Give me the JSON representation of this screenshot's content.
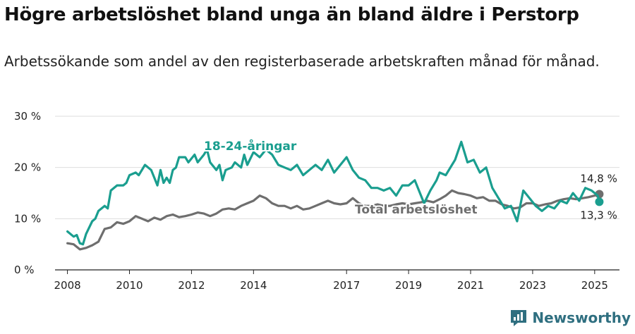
{
  "title": "Högre arbetslöshet bland unga än bland äldre i Perstorp",
  "subtitle": "Arbetssökande som andel av den registerbaserade arbetskraften månad för månad.",
  "logo": {
    "text": "Newsworthy",
    "icon": "bar-chart-icon"
  },
  "chart_data": {
    "type": "line",
    "title": "Högre arbetslöshet bland unga än bland äldre i Perstorp",
    "subtitle": "Arbetssökande som andel av den registerbaserade arbetskraften månad för månad.",
    "ylim": [
      0,
      30
    ],
    "xlim": [
      2007.6,
      2025.8
    ],
    "y_ticks": [
      0,
      10,
      20,
      30
    ],
    "y_tick_labels": [
      "0 %",
      "10 %",
      "20 %",
      "30 %"
    ],
    "x_ticks": [
      2008,
      2010,
      2012,
      2014,
      2017,
      2019,
      2021,
      2023,
      2025
    ],
    "x_tick_labels": [
      "2008",
      "2010",
      "2012",
      "2014",
      "2017",
      "2019",
      "2021",
      "2023",
      "2025"
    ],
    "grid": true,
    "series": [
      {
        "name": "18-24-åringar",
        "color": "#1a9e8f",
        "end_label": "13,3 %",
        "points": [
          [
            2008.0,
            7.5
          ],
          [
            2008.2,
            6.5
          ],
          [
            2008.3,
            6.8
          ],
          [
            2008.4,
            5.2
          ],
          [
            2008.5,
            5.0
          ],
          [
            2008.6,
            7.0
          ],
          [
            2008.8,
            9.5
          ],
          [
            2008.9,
            10.0
          ],
          [
            2009.0,
            11.5
          ],
          [
            2009.2,
            12.5
          ],
          [
            2009.3,
            12.0
          ],
          [
            2009.4,
            15.5
          ],
          [
            2009.6,
            16.5
          ],
          [
            2009.8,
            16.5
          ],
          [
            2009.9,
            17.0
          ],
          [
            2010.0,
            18.5
          ],
          [
            2010.2,
            19.0
          ],
          [
            2010.3,
            18.5
          ],
          [
            2010.5,
            20.5
          ],
          [
            2010.7,
            19.5
          ],
          [
            2010.8,
            18.0
          ],
          [
            2010.9,
            16.5
          ],
          [
            2011.0,
            19.5
          ],
          [
            2011.1,
            17.0
          ],
          [
            2011.2,
            18.0
          ],
          [
            2011.3,
            17.0
          ],
          [
            2011.4,
            19.5
          ],
          [
            2011.5,
            20.0
          ],
          [
            2011.6,
            22.0
          ],
          [
            2011.8,
            22.0
          ],
          [
            2011.9,
            21.0
          ],
          [
            2012.1,
            22.5
          ],
          [
            2012.2,
            21.0
          ],
          [
            2012.4,
            22.5
          ],
          [
            2012.5,
            23.5
          ],
          [
            2012.6,
            21.0
          ],
          [
            2012.8,
            19.5
          ],
          [
            2012.9,
            20.5
          ],
          [
            2013.0,
            17.5
          ],
          [
            2013.1,
            19.5
          ],
          [
            2013.3,
            20.0
          ],
          [
            2013.4,
            21.0
          ],
          [
            2013.6,
            20.0
          ],
          [
            2013.7,
            22.5
          ],
          [
            2013.8,
            20.5
          ],
          [
            2014.0,
            23.0
          ],
          [
            2014.2,
            22.0
          ],
          [
            2014.4,
            23.5
          ],
          [
            2014.6,
            22.5
          ],
          [
            2014.8,
            20.5
          ],
          [
            2015.0,
            20.0
          ],
          [
            2015.2,
            19.5
          ],
          [
            2015.4,
            20.5
          ],
          [
            2015.6,
            18.5
          ],
          [
            2015.8,
            19.5
          ],
          [
            2016.0,
            20.5
          ],
          [
            2016.2,
            19.5
          ],
          [
            2016.4,
            21.5
          ],
          [
            2016.6,
            19.0
          ],
          [
            2016.8,
            20.5
          ],
          [
            2017.0,
            22.0
          ],
          [
            2017.2,
            19.5
          ],
          [
            2017.4,
            18.0
          ],
          [
            2017.6,
            17.5
          ],
          [
            2017.8,
            16.0
          ],
          [
            2018.0,
            16.0
          ],
          [
            2018.2,
            15.5
          ],
          [
            2018.4,
            16.0
          ],
          [
            2018.6,
            14.5
          ],
          [
            2018.8,
            16.5
          ],
          [
            2019.0,
            16.5
          ],
          [
            2019.2,
            17.5
          ],
          [
            2019.4,
            14.5
          ],
          [
            2019.5,
            13.0
          ],
          [
            2019.7,
            15.5
          ],
          [
            2019.9,
            17.5
          ],
          [
            2020.0,
            19.0
          ],
          [
            2020.2,
            18.5
          ],
          [
            2020.4,
            20.5
          ],
          [
            2020.5,
            21.5
          ],
          [
            2020.7,
            25.0
          ],
          [
            2020.9,
            21.0
          ],
          [
            2021.1,
            21.5
          ],
          [
            2021.3,
            19.0
          ],
          [
            2021.5,
            20.0
          ],
          [
            2021.7,
            16.0
          ],
          [
            2021.9,
            14.0
          ],
          [
            2022.1,
            12.0
          ],
          [
            2022.3,
            12.5
          ],
          [
            2022.5,
            9.5
          ],
          [
            2022.7,
            15.5
          ],
          [
            2022.9,
            14.0
          ],
          [
            2023.1,
            12.5
          ],
          [
            2023.3,
            11.5
          ],
          [
            2023.5,
            12.5
          ],
          [
            2023.7,
            12.0
          ],
          [
            2023.9,
            13.5
          ],
          [
            2024.1,
            13.0
          ],
          [
            2024.3,
            15.0
          ],
          [
            2024.5,
            13.5
          ],
          [
            2024.7,
            16.0
          ],
          [
            2024.9,
            15.5
          ],
          [
            2025.1,
            14.5
          ],
          [
            2025.15,
            13.3
          ]
        ]
      },
      {
        "name": "Total arbetslöshet",
        "color": "#6e6e6e",
        "end_label": "14,8 %",
        "points": [
          [
            2008.0,
            5.2
          ],
          [
            2008.2,
            5.0
          ],
          [
            2008.4,
            4.0
          ],
          [
            2008.6,
            4.3
          ],
          [
            2008.8,
            4.8
          ],
          [
            2009.0,
            5.5
          ],
          [
            2009.2,
            8.0
          ],
          [
            2009.4,
            8.3
          ],
          [
            2009.6,
            9.3
          ],
          [
            2009.8,
            9.0
          ],
          [
            2010.0,
            9.5
          ],
          [
            2010.2,
            10.5
          ],
          [
            2010.4,
            10.0
          ],
          [
            2010.6,
            9.5
          ],
          [
            2010.8,
            10.2
          ],
          [
            2011.0,
            9.8
          ],
          [
            2011.2,
            10.5
          ],
          [
            2011.4,
            10.8
          ],
          [
            2011.6,
            10.3
          ],
          [
            2011.8,
            10.5
          ],
          [
            2012.0,
            10.8
          ],
          [
            2012.2,
            11.2
          ],
          [
            2012.4,
            11.0
          ],
          [
            2012.6,
            10.5
          ],
          [
            2012.8,
            11.0
          ],
          [
            2013.0,
            11.8
          ],
          [
            2013.2,
            12.0
          ],
          [
            2013.4,
            11.8
          ],
          [
            2013.6,
            12.5
          ],
          [
            2013.8,
            13.0
          ],
          [
            2014.0,
            13.5
          ],
          [
            2014.2,
            14.5
          ],
          [
            2014.4,
            14.0
          ],
          [
            2014.6,
            13.0
          ],
          [
            2014.8,
            12.5
          ],
          [
            2015.0,
            12.5
          ],
          [
            2015.2,
            12.0
          ],
          [
            2015.4,
            12.5
          ],
          [
            2015.6,
            11.8
          ],
          [
            2015.8,
            12.0
          ],
          [
            2016.0,
            12.5
          ],
          [
            2016.2,
            13.0
          ],
          [
            2016.4,
            13.5
          ],
          [
            2016.6,
            13.0
          ],
          [
            2016.8,
            12.8
          ],
          [
            2017.0,
            13.0
          ],
          [
            2017.2,
            14.0
          ],
          [
            2017.4,
            13.0
          ],
          [
            2017.6,
            12.5
          ],
          [
            2017.8,
            12.5
          ],
          [
            2018.0,
            12.8
          ],
          [
            2018.2,
            12.5
          ],
          [
            2018.4,
            12.5
          ],
          [
            2018.6,
            12.8
          ],
          [
            2018.8,
            13.0
          ],
          [
            2019.0,
            12.8
          ],
          [
            2019.2,
            13.0
          ],
          [
            2019.4,
            13.2
          ],
          [
            2019.6,
            13.5
          ],
          [
            2019.8,
            13.2
          ],
          [
            2020.0,
            13.8
          ],
          [
            2020.2,
            14.5
          ],
          [
            2020.4,
            15.5
          ],
          [
            2020.6,
            15.0
          ],
          [
            2020.8,
            14.8
          ],
          [
            2021.0,
            14.5
          ],
          [
            2021.2,
            14.0
          ],
          [
            2021.4,
            14.2
          ],
          [
            2021.6,
            13.5
          ],
          [
            2021.8,
            13.5
          ],
          [
            2022.0,
            12.8
          ],
          [
            2022.2,
            12.5
          ],
          [
            2022.4,
            12.0
          ],
          [
            2022.6,
            12.2
          ],
          [
            2022.8,
            13.0
          ],
          [
            2023.0,
            13.0
          ],
          [
            2023.2,
            12.5
          ],
          [
            2023.4,
            12.8
          ],
          [
            2023.6,
            13.0
          ],
          [
            2023.8,
            13.5
          ],
          [
            2024.0,
            13.8
          ],
          [
            2024.2,
            14.0
          ],
          [
            2024.4,
            13.8
          ],
          [
            2024.6,
            14.0
          ],
          [
            2024.8,
            14.2
          ],
          [
            2025.0,
            14.5
          ],
          [
            2025.15,
            14.8
          ]
        ]
      }
    ]
  }
}
